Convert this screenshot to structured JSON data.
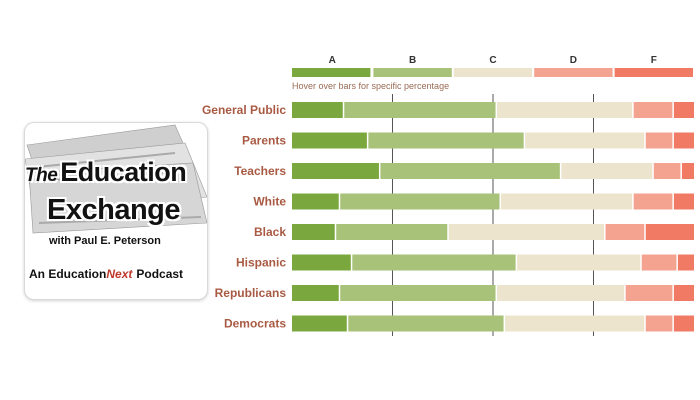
{
  "logo": {
    "line1_the": "The",
    "line1_rest": "Education",
    "line2": "Exchange",
    "line3": "with Paul E. Peterson",
    "line4_an": "An",
    "line4_education": "Education",
    "line4_next": "Next",
    "line4_podcast": "Podcast"
  },
  "hint": "Hover over bars for specific percentage",
  "colors": {
    "A": "#7aa83e",
    "B": "#a9c27a",
    "C": "#ece4cc",
    "D": "#f5a391",
    "F": "#f07a64",
    "label": "#a85a43"
  },
  "chart_data": {
    "type": "bar",
    "orientation": "horizontal-stacked-100",
    "title": "",
    "legend": [
      "A",
      "B",
      "C",
      "D",
      "F"
    ],
    "categories": [
      "General Public",
      "Parents",
      "Teachers",
      "White",
      "Black",
      "Hispanic",
      "Republicans",
      "Democrats"
    ],
    "series": [
      {
        "name": "A",
        "values": [
          13,
          19,
          22,
          12,
          11,
          15,
          12,
          14
        ]
      },
      {
        "name": "B",
        "values": [
          38,
          39,
          45,
          40,
          28,
          41,
          39,
          39
        ]
      },
      {
        "name": "C",
        "values": [
          34,
          30,
          23,
          33,
          39,
          31,
          32,
          35
        ]
      },
      {
        "name": "D",
        "values": [
          10,
          7,
          7,
          10,
          10,
          9,
          12,
          7
        ]
      },
      {
        "name": "F",
        "values": [
          5,
          5,
          3,
          5,
          12,
          4,
          5,
          5
        ]
      }
    ],
    "xlim": [
      0,
      100
    ]
  }
}
